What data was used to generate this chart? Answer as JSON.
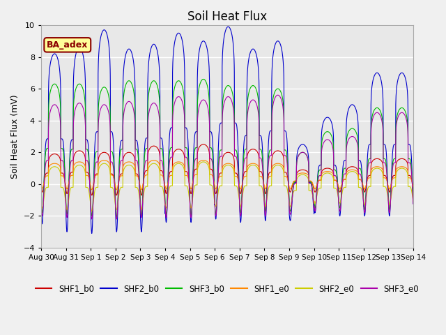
{
  "title": "Soil Heat Flux",
  "ylabel": "Soil Heat Flux (mV)",
  "ylim": [
    -4,
    10
  ],
  "yticks": [
    -4,
    -2,
    0,
    2,
    4,
    6,
    8,
    10
  ],
  "background_color": "#f0f0f0",
  "plot_bg_color": "#e8e8e8",
  "grid_color": "white",
  "label_box_text": "BA_adex",
  "label_box_facecolor": "#ffff99",
  "label_box_edgecolor": "#8b0000",
  "label_box_textcolor": "#8b0000",
  "xtick_labels": [
    "Aug 30",
    "Aug 31",
    "Sep 1",
    "Sep 2",
    "Sep 3",
    "Sep 4",
    "Sep 5",
    "Sep 6",
    "Sep 7",
    "Sep 8",
    "Sep 9",
    "Sep 10",
    "Sep 11",
    "Sep 12",
    "Sep 13",
    "Sep 14"
  ],
  "series": [
    {
      "name": "SHF1_b0",
      "color": "#cc0000"
    },
    {
      "name": "SHF2_b0",
      "color": "#0000cc"
    },
    {
      "name": "SHF3_b0",
      "color": "#00bb00"
    },
    {
      "name": "SHF1_e0",
      "color": "#ff8800"
    },
    {
      "name": "SHF2_e0",
      "color": "#cccc00"
    },
    {
      "name": "SHF3_e0",
      "color": "#aa00aa"
    }
  ],
  "n_days": 15,
  "samples_per_day": 288,
  "peak_phase": 0.54,
  "sharpness": 6.0,
  "series_params": {
    "SHF2_b0": {
      "peaks": [
        8.2,
        8.6,
        9.7,
        8.5,
        8.8,
        9.5,
        9.0,
        9.9,
        8.5,
        9.0,
        2.5,
        4.2,
        5.0,
        7.0,
        7.0
      ],
      "troughs": [
        -2.5,
        -3.0,
        -3.1,
        -3.0,
        -3.0,
        -2.4,
        -2.4,
        -2.2,
        -2.4,
        -2.3,
        -2.3,
        -1.8,
        -2.0,
        -2.0,
        -2.0
      ]
    },
    "SHF1_b0": {
      "peaks": [
        1.9,
        2.1,
        2.0,
        2.0,
        2.4,
        2.2,
        2.5,
        2.0,
        2.2,
        2.1,
        0.9,
        1.0,
        1.1,
        1.6,
        1.6
      ],
      "troughs": [
        -0.5,
        -0.6,
        -0.7,
        -0.7,
        -0.7,
        -0.6,
        -0.6,
        -0.6,
        -0.6,
        -0.6,
        -0.5,
        -0.5,
        -0.5,
        -0.5,
        -0.5
      ]
    },
    "SHF3_b0": {
      "peaks": [
        6.3,
        6.3,
        6.1,
        6.5,
        6.5,
        6.5,
        6.6,
        6.2,
        6.2,
        6.0,
        2.0,
        3.3,
        3.5,
        4.8,
        4.8
      ],
      "troughs": [
        -1.8,
        -1.9,
        -2.0,
        -2.1,
        -2.0,
        -1.9,
        -2.0,
        -1.9,
        -1.8,
        -1.7,
        -1.7,
        -1.5,
        -1.5,
        -1.6,
        -1.6
      ]
    },
    "SHF1_e0": {
      "peaks": [
        1.3,
        1.4,
        1.5,
        1.4,
        1.5,
        1.4,
        1.5,
        1.3,
        1.3,
        1.3,
        0.7,
        0.8,
        0.9,
        1.1,
        1.1
      ],
      "troughs": [
        -0.25,
        -0.3,
        -0.35,
        -0.35,
        -0.35,
        -0.3,
        -0.3,
        -0.3,
        -0.3,
        -0.3,
        -0.3,
        -0.3,
        -0.3,
        -0.3,
        -0.3
      ]
    },
    "SHF2_e0": {
      "peaks": [
        1.1,
        1.2,
        1.3,
        1.2,
        1.3,
        1.3,
        1.4,
        1.2,
        1.2,
        1.2,
        0.6,
        0.7,
        0.8,
        1.0,
        1.0
      ],
      "troughs": [
        -1.5,
        -1.6,
        -1.7,
        -1.6,
        -1.6,
        -1.5,
        -1.5,
        -1.4,
        -1.4,
        -1.4,
        -1.4,
        -1.2,
        -1.2,
        -1.3,
        -1.3
      ]
    },
    "SHF3_e0": {
      "peaks": [
        5.0,
        5.1,
        5.0,
        5.2,
        5.1,
        5.5,
        5.3,
        5.5,
        5.3,
        5.6,
        2.0,
        2.8,
        3.0,
        4.5,
        4.5
      ],
      "troughs": [
        -2.0,
        -2.1,
        -2.2,
        -2.2,
        -2.1,
        -2.1,
        -2.1,
        -2.0,
        -2.0,
        -2.0,
        -1.9,
        -1.7,
        -1.7,
        -1.8,
        -1.8
      ]
    }
  }
}
